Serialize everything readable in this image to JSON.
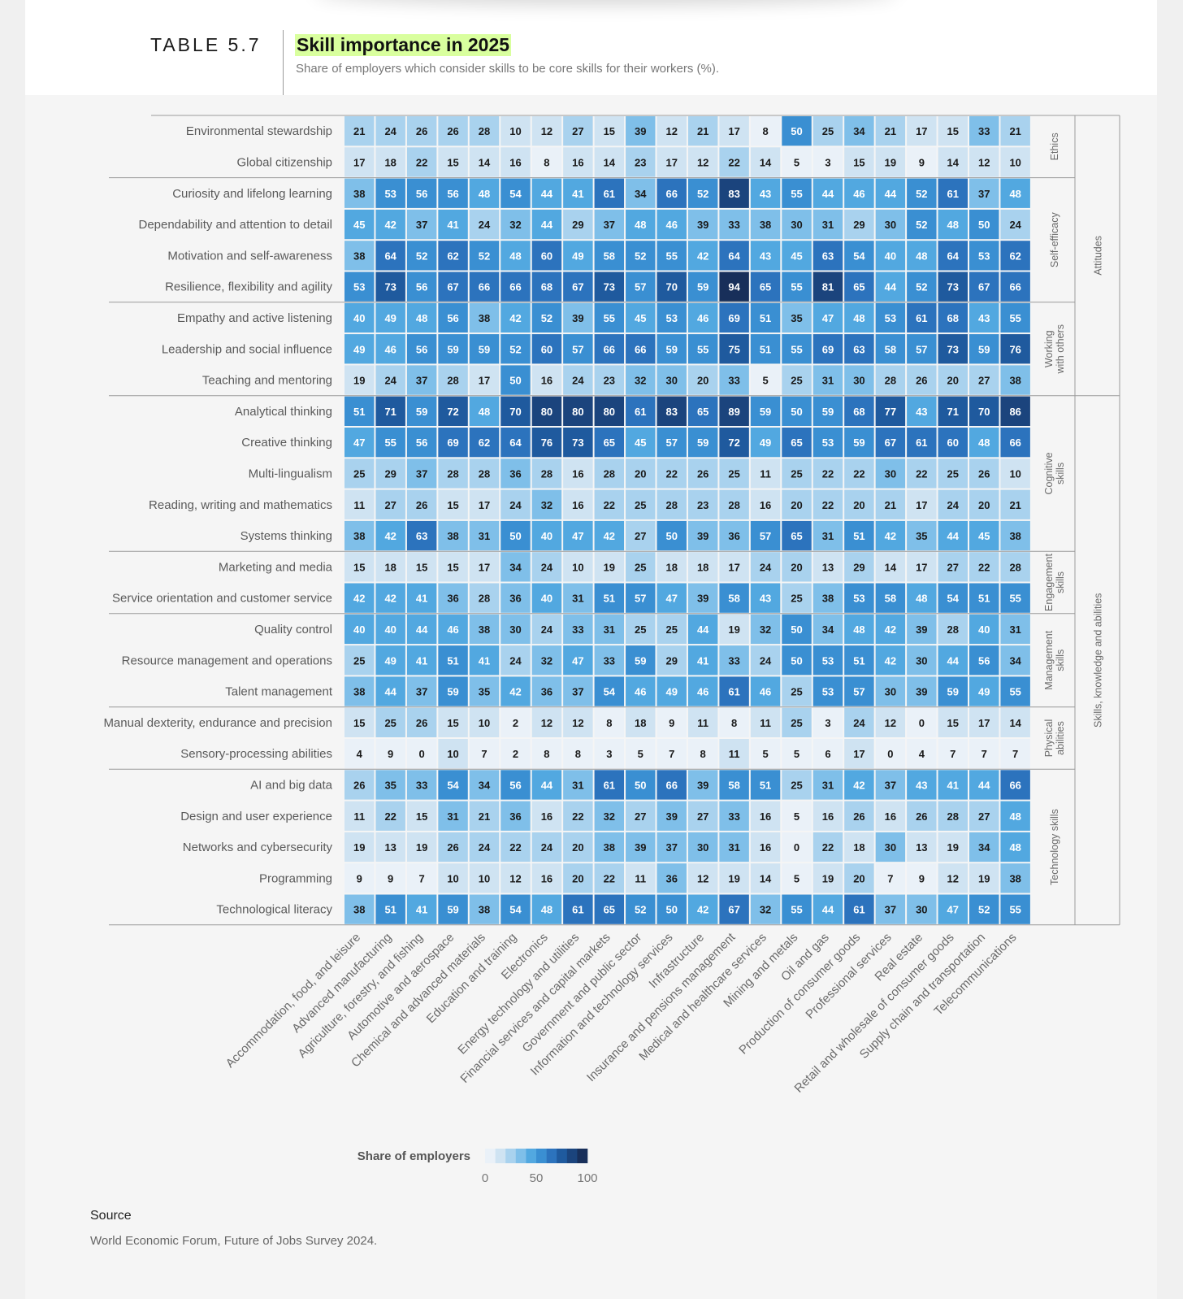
{
  "header": {
    "table_number": "TABLE 5.7",
    "title": "Skill importance in 2025",
    "subtitle": "Share of employers which consider skills to be core skills for their workers (%)."
  },
  "source": {
    "heading": "Source",
    "text": "World Economic Forum, Future of Jobs Survey 2024."
  },
  "colors": {
    "highlight": "#d9ff9e",
    "scale": [
      "#eaf1f8",
      "#cfe3f2",
      "#a9d2ee",
      "#7fbfe9",
      "#52a8e0",
      "#3a8fd2",
      "#2c73bd",
      "#1f5a9e",
      "#1b447d",
      "#182f5a"
    ]
  },
  "chart_data": {
    "type": "heatmap",
    "title": "Skill importance in 2025",
    "legend": {
      "title": "Share of employers",
      "ticks": [
        "0",
        "50",
        "100"
      ],
      "range": [
        0,
        100
      ]
    },
    "columns": [
      "Accommodation, food, and leisure",
      "Advanced manufacturing",
      "Agriculture, forestry, and fishing",
      "Automotive and aerospace",
      "Chemical and advanced materials",
      "Education and training",
      "Electronics",
      "Energy technology and utilities",
      "Financial services and capital markets",
      "Government and public sector",
      "Information and technology services",
      "Infrastructure",
      "Insurance and pensions management",
      "Medical and healthcare services",
      "Mining and metals",
      "Oil and gas",
      "Production of consumer goods",
      "Professional services",
      "Real estate",
      "Retail and wholesale of consumer goods",
      "Supply chain and transportation",
      "Telecommunications"
    ],
    "inner_groups": [
      {
        "label": [
          "Ethics"
        ],
        "start": 0,
        "end": 1
      },
      {
        "label": [
          "Self-efficacy"
        ],
        "start": 2,
        "end": 5
      },
      {
        "label": [
          "Working",
          "with others"
        ],
        "start": 6,
        "end": 8
      },
      {
        "label": [
          "Cognitive",
          "skills"
        ],
        "start": 9,
        "end": 13
      },
      {
        "label": [
          "Engagement",
          "skills"
        ],
        "start": 14,
        "end": 15
      },
      {
        "label": [
          "Management",
          "skills"
        ],
        "start": 16,
        "end": 18
      },
      {
        "label": [
          "Physical",
          "abilities"
        ],
        "start": 19,
        "end": 20
      },
      {
        "label": [
          "Technology skills"
        ],
        "start": 21,
        "end": 25
      }
    ],
    "outer_groups": [
      {
        "label": "Attitudes",
        "start": 0,
        "end": 8
      },
      {
        "label": "Skills, knowledge and abilities",
        "start": 9,
        "end": 25
      }
    ],
    "rows": [
      {
        "skill": "Environmental stewardship",
        "values": [
          21,
          24,
          26,
          26,
          28,
          10,
          12,
          27,
          15,
          39,
          12,
          21,
          17,
          8,
          50,
          25,
          34,
          21,
          17,
          15,
          33,
          21
        ]
      },
      {
        "skill": "Global citizenship",
        "values": [
          17,
          18,
          22,
          15,
          14,
          16,
          8,
          16,
          14,
          23,
          17,
          12,
          22,
          14,
          5,
          3,
          15,
          19,
          9,
          14,
          12,
          10
        ]
      },
      {
        "skill": "Curiosity and lifelong learning",
        "values": [
          38,
          53,
          56,
          56,
          48,
          54,
          44,
          41,
          61,
          34,
          66,
          52,
          83,
          43,
          55,
          44,
          46,
          44,
          52,
          61,
          37,
          48
        ]
      },
      {
        "skill": "Dependability and attention to detail",
        "values": [
          45,
          42,
          37,
          41,
          24,
          32,
          44,
          29,
          37,
          48,
          46,
          39,
          33,
          38,
          30,
          31,
          29,
          30,
          52,
          48,
          50,
          24
        ]
      },
      {
        "skill": "Motivation and self-awareness",
        "values": [
          38,
          64,
          52,
          62,
          52,
          48,
          60,
          49,
          58,
          52,
          55,
          42,
          64,
          43,
          45,
          63,
          54,
          40,
          48,
          64,
          53,
          62
        ]
      },
      {
        "skill": "Resilience, flexibility and agility",
        "values": [
          53,
          73,
          56,
          67,
          66,
          66,
          68,
          67,
          73,
          57,
          70,
          59,
          94,
          65,
          55,
          81,
          65,
          44,
          52,
          73,
          67,
          66
        ]
      },
      {
        "skill": "Empathy and active listening",
        "values": [
          40,
          49,
          48,
          56,
          38,
          42,
          52,
          39,
          55,
          45,
          53,
          46,
          69,
          51,
          35,
          47,
          48,
          53,
          61,
          68,
          43,
          55
        ]
      },
      {
        "skill": "Leadership and social influence",
        "values": [
          49,
          46,
          56,
          59,
          59,
          52,
          60,
          57,
          66,
          66,
          59,
          55,
          75,
          51,
          55,
          69,
          63,
          58,
          57,
          73,
          59,
          76
        ]
      },
      {
        "skill": "Teaching and mentoring",
        "values": [
          19,
          24,
          37,
          28,
          17,
          50,
          16,
          24,
          23,
          32,
          30,
          20,
          33,
          5,
          25,
          31,
          30,
          28,
          26,
          20,
          27,
          38
        ]
      },
      {
        "skill": "Analytical thinking",
        "values": [
          51,
          71,
          59,
          72,
          48,
          70,
          80,
          80,
          80,
          61,
          83,
          65,
          89,
          59,
          50,
          59,
          68,
          77,
          43,
          71,
          70,
          86
        ]
      },
      {
        "skill": "Creative thinking",
        "values": [
          47,
          55,
          56,
          69,
          62,
          64,
          76,
          73,
          65,
          45,
          57,
          59,
          72,
          49,
          65,
          53,
          59,
          67,
          61,
          60,
          48,
          66
        ]
      },
      {
        "skill": "Multi-lingualism",
        "values": [
          25,
          29,
          37,
          28,
          28,
          36,
          28,
          16,
          28,
          20,
          22,
          26,
          25,
          11,
          25,
          22,
          22,
          30,
          22,
          25,
          26,
          10
        ]
      },
      {
        "skill": "Reading, writing and mathematics",
        "values": [
          11,
          27,
          26,
          15,
          17,
          24,
          32,
          16,
          22,
          25,
          28,
          23,
          28,
          16,
          20,
          22,
          20,
          21,
          17,
          24,
          20,
          21
        ]
      },
      {
        "skill": "Systems thinking",
        "values": [
          38,
          42,
          63,
          38,
          31,
          50,
          40,
          47,
          42,
          27,
          50,
          39,
          36,
          57,
          65,
          31,
          51,
          42,
          35,
          44,
          45,
          38
        ]
      },
      {
        "skill": "Marketing and media",
        "values": [
          15,
          18,
          15,
          15,
          17,
          34,
          24,
          10,
          19,
          25,
          18,
          18,
          17,
          24,
          20,
          13,
          29,
          14,
          17,
          27,
          22,
          28
        ]
      },
      {
        "skill": "Service orientation and customer service",
        "values": [
          42,
          42,
          41,
          36,
          28,
          36,
          40,
          31,
          51,
          57,
          47,
          39,
          58,
          43,
          25,
          38,
          53,
          58,
          48,
          54,
          51,
          55
        ]
      },
      {
        "skill": "Quality control",
        "values": [
          40,
          40,
          44,
          46,
          38,
          30,
          24,
          33,
          31,
          25,
          25,
          44,
          19,
          32,
          50,
          34,
          48,
          42,
          39,
          28,
          40,
          31
        ]
      },
      {
        "skill": "Resource management and operations",
        "values": [
          25,
          49,
          41,
          51,
          41,
          24,
          32,
          47,
          33,
          59,
          29,
          41,
          33,
          24,
          50,
          53,
          51,
          42,
          30,
          44,
          56,
          34
        ]
      },
      {
        "skill": "Talent management",
        "values": [
          38,
          44,
          37,
          59,
          35,
          42,
          36,
          37,
          54,
          46,
          49,
          46,
          61,
          46,
          25,
          53,
          57,
          30,
          39,
          59,
          49,
          55
        ]
      },
      {
        "skill": "Manual dexterity, endurance and precision",
        "values": [
          15,
          25,
          26,
          15,
          10,
          2,
          12,
          12,
          8,
          18,
          9,
          11,
          8,
          11,
          25,
          3,
          24,
          12,
          0,
          15,
          17,
          14
        ]
      },
      {
        "skill": "Sensory-processing abilities",
        "values": [
          4,
          9,
          0,
          10,
          7,
          2,
          8,
          8,
          3,
          5,
          7,
          8,
          11,
          5,
          5,
          6,
          17,
          0,
          4,
          7,
          7,
          7
        ]
      },
      {
        "skill": "AI and big data",
        "values": [
          26,
          35,
          33,
          54,
          34,
          56,
          44,
          31,
          61,
          50,
          66,
          39,
          58,
          51,
          25,
          31,
          42,
          37,
          43,
          41,
          44,
          66
        ]
      },
      {
        "skill": "Design and user experience",
        "values": [
          11,
          22,
          15,
          31,
          21,
          36,
          16,
          22,
          32,
          27,
          39,
          27,
          33,
          16,
          5,
          16,
          26,
          16,
          26,
          28,
          27,
          48
        ]
      },
      {
        "skill": "Networks and cybersecurity",
        "values": [
          19,
          13,
          19,
          26,
          24,
          22,
          24,
          20,
          38,
          39,
          37,
          30,
          31,
          16,
          0,
          22,
          18,
          30,
          13,
          19,
          34,
          48
        ]
      },
      {
        "skill": "Programming",
        "values": [
          9,
          9,
          7,
          10,
          10,
          12,
          16,
          20,
          22,
          11,
          36,
          12,
          19,
          14,
          5,
          19,
          20,
          7,
          9,
          12,
          19,
          38
        ]
      },
      {
        "skill": "Technological literacy",
        "values": [
          38,
          51,
          41,
          59,
          38,
          54,
          48,
          61,
          65,
          52,
          50,
          42,
          67,
          32,
          55,
          44,
          61,
          37,
          30,
          47,
          52,
          55
        ]
      }
    ]
  }
}
